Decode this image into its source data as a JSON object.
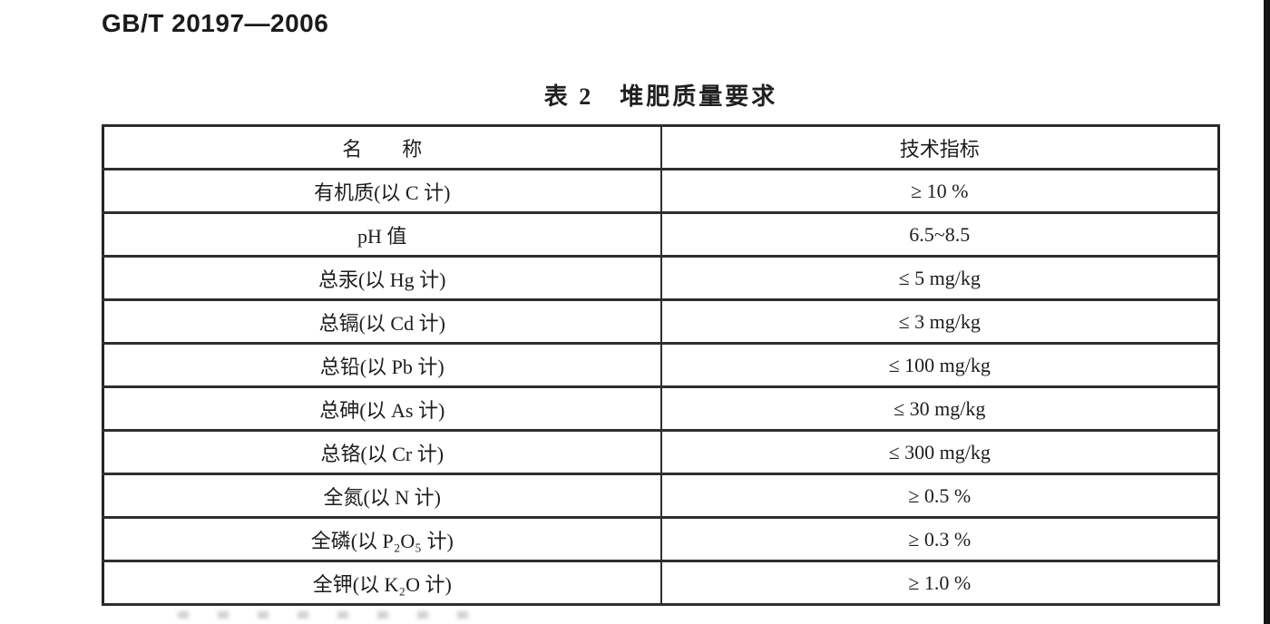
{
  "page": {
    "doc_number": "GB/T 20197—2006",
    "table_title": "表 2　堆肥质量要求"
  },
  "table": {
    "headers": [
      "名　　称",
      "技术指标"
    ],
    "rows": [
      {
        "name": "有机质(以 C 计)",
        "value": "≥ 10 %"
      },
      {
        "name": "pH 值",
        "value": "6.5~8.5"
      },
      {
        "name": "总汞(以 Hg 计)",
        "value": "≤ 5 mg/kg"
      },
      {
        "name": "总镉(以 Cd 计)",
        "value": "≤ 3 mg/kg"
      },
      {
        "name": "总铅(以 Pb 计)",
        "value": "≤ 100 mg/kg"
      },
      {
        "name": "总砷(以 As 计)",
        "value": "≤ 30 mg/kg"
      },
      {
        "name": "总铬(以 Cr 计)",
        "value": "≤ 300 mg/kg"
      },
      {
        "name": "全氮(以 N 计)",
        "value": "≥ 0.5 %"
      },
      {
        "name": "全磷(以 P₂O₅ 计)",
        "value": "≥ 0.3 %"
      },
      {
        "name": "全钾(以 K₂O 计)",
        "value": "≥ 1.0 %"
      }
    ]
  },
  "colors": {
    "text": "#1f1f1f",
    "border": "#2e2e2e",
    "scan_edge": "#141414",
    "background": "#ffffff"
  }
}
